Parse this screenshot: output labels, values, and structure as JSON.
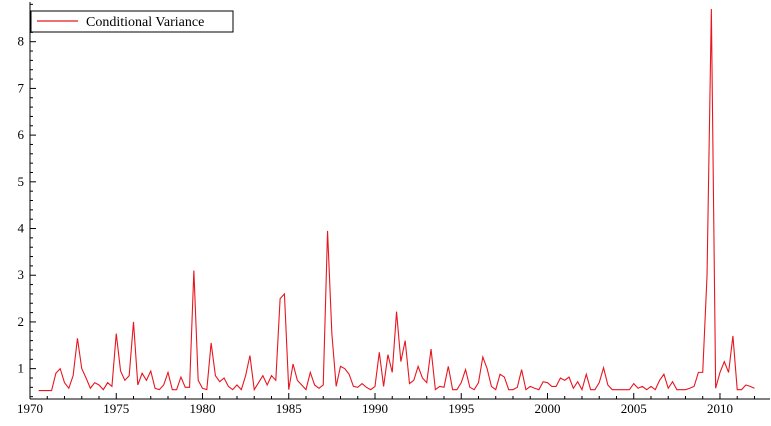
{
  "chart_data": {
    "type": "line",
    "title": "",
    "xlabel": "",
    "ylabel": "",
    "xlim": [
      1970,
      2012.9
    ],
    "ylim": [
      0.35,
      8.85
    ],
    "x_ticks": [
      1970,
      1975,
      1980,
      1985,
      1990,
      1995,
      2000,
      2005,
      2010
    ],
    "y_ticks": [
      1,
      2,
      3,
      4,
      5,
      6,
      7,
      8
    ],
    "grid": false,
    "legend_position": "top-left",
    "series": [
      {
        "name": "Conditional Variance",
        "color": "#e8161f",
        "points": [
          [
            1970.5,
            0.53
          ],
          [
            1970.75,
            0.53
          ],
          [
            1971.0,
            0.53
          ],
          [
            1971.25,
            0.53
          ],
          [
            1971.5,
            0.9
          ],
          [
            1971.75,
            1.0
          ],
          [
            1972.0,
            0.7
          ],
          [
            1972.25,
            0.58
          ],
          [
            1972.5,
            0.85
          ],
          [
            1972.75,
            1.65
          ],
          [
            1973.0,
            1.0
          ],
          [
            1973.25,
            0.8
          ],
          [
            1973.5,
            0.58
          ],
          [
            1973.75,
            0.7
          ],
          [
            1974.0,
            0.65
          ],
          [
            1974.25,
            0.55
          ],
          [
            1974.5,
            0.7
          ],
          [
            1974.75,
            0.62
          ],
          [
            1975.0,
            1.75
          ],
          [
            1975.25,
            0.95
          ],
          [
            1975.5,
            0.75
          ],
          [
            1975.75,
            0.85
          ],
          [
            1976.0,
            2.0
          ],
          [
            1976.25,
            0.65
          ],
          [
            1976.5,
            0.9
          ],
          [
            1976.75,
            0.75
          ],
          [
            1977.0,
            0.95
          ],
          [
            1977.25,
            0.58
          ],
          [
            1977.5,
            0.55
          ],
          [
            1977.75,
            0.65
          ],
          [
            1978.0,
            0.92
          ],
          [
            1978.25,
            0.55
          ],
          [
            1978.5,
            0.55
          ],
          [
            1978.75,
            0.82
          ],
          [
            1979.0,
            0.6
          ],
          [
            1979.25,
            0.6
          ],
          [
            1979.5,
            3.1
          ],
          [
            1979.75,
            0.75
          ],
          [
            1980.0,
            0.58
          ],
          [
            1980.25,
            0.55
          ],
          [
            1980.5,
            1.55
          ],
          [
            1980.75,
            0.85
          ],
          [
            1981.0,
            0.72
          ],
          [
            1981.25,
            0.8
          ],
          [
            1981.5,
            0.62
          ],
          [
            1981.75,
            0.55
          ],
          [
            1982.0,
            0.65
          ],
          [
            1982.25,
            0.55
          ],
          [
            1982.5,
            0.85
          ],
          [
            1982.75,
            1.28
          ],
          [
            1983.0,
            0.55
          ],
          [
            1983.25,
            0.7
          ],
          [
            1983.5,
            0.85
          ],
          [
            1983.75,
            0.65
          ],
          [
            1984.0,
            0.85
          ],
          [
            1984.25,
            0.75
          ],
          [
            1984.5,
            2.5
          ],
          [
            1984.75,
            2.6
          ],
          [
            1985.0,
            0.55
          ],
          [
            1985.25,
            1.1
          ],
          [
            1985.5,
            0.75
          ],
          [
            1985.75,
            0.65
          ],
          [
            1986.0,
            0.55
          ],
          [
            1986.25,
            0.92
          ],
          [
            1986.5,
            0.65
          ],
          [
            1986.75,
            0.58
          ],
          [
            1987.0,
            0.65
          ],
          [
            1987.25,
            3.95
          ],
          [
            1987.5,
            1.75
          ],
          [
            1987.75,
            0.62
          ],
          [
            1988.0,
            1.05
          ],
          [
            1988.25,
            1.0
          ],
          [
            1988.5,
            0.88
          ],
          [
            1988.75,
            0.62
          ],
          [
            1989.0,
            0.6
          ],
          [
            1989.25,
            0.68
          ],
          [
            1989.5,
            0.6
          ],
          [
            1989.75,
            0.55
          ],
          [
            1990.0,
            0.62
          ],
          [
            1990.25,
            1.35
          ],
          [
            1990.5,
            0.62
          ],
          [
            1990.75,
            1.3
          ],
          [
            1991.0,
            0.92
          ],
          [
            1991.25,
            2.22
          ],
          [
            1991.5,
            1.15
          ],
          [
            1991.75,
            1.6
          ],
          [
            1992.0,
            0.68
          ],
          [
            1992.25,
            0.75
          ],
          [
            1992.5,
            1.05
          ],
          [
            1992.75,
            0.8
          ],
          [
            1993.0,
            0.7
          ],
          [
            1993.25,
            1.42
          ],
          [
            1993.5,
            0.55
          ],
          [
            1993.75,
            0.62
          ],
          [
            1994.0,
            0.6
          ],
          [
            1994.25,
            1.05
          ],
          [
            1994.5,
            0.55
          ],
          [
            1994.75,
            0.55
          ],
          [
            1995.0,
            0.7
          ],
          [
            1995.25,
            0.98
          ],
          [
            1995.5,
            0.6
          ],
          [
            1995.75,
            0.55
          ],
          [
            1996.0,
            0.7
          ],
          [
            1996.25,
            1.25
          ],
          [
            1996.5,
            1.0
          ],
          [
            1996.75,
            0.62
          ],
          [
            1997.0,
            0.55
          ],
          [
            1997.25,
            0.88
          ],
          [
            1997.5,
            0.82
          ],
          [
            1997.75,
            0.55
          ],
          [
            1998.0,
            0.55
          ],
          [
            1998.25,
            0.6
          ],
          [
            1998.5,
            0.98
          ],
          [
            1998.75,
            0.55
          ],
          [
            1999.0,
            0.62
          ],
          [
            1999.25,
            0.58
          ],
          [
            1999.5,
            0.55
          ],
          [
            1999.75,
            0.72
          ],
          [
            2000.0,
            0.7
          ],
          [
            2000.25,
            0.62
          ],
          [
            2000.5,
            0.62
          ],
          [
            2000.75,
            0.8
          ],
          [
            2001.0,
            0.75
          ],
          [
            2001.25,
            0.82
          ],
          [
            2001.5,
            0.58
          ],
          [
            2001.75,
            0.72
          ],
          [
            2002.0,
            0.55
          ],
          [
            2002.25,
            0.88
          ],
          [
            2002.5,
            0.55
          ],
          [
            2002.75,
            0.55
          ],
          [
            2003.0,
            0.7
          ],
          [
            2003.25,
            1.02
          ],
          [
            2003.5,
            0.65
          ],
          [
            2003.75,
            0.55
          ],
          [
            2004.0,
            0.55
          ],
          [
            2004.25,
            0.55
          ],
          [
            2004.5,
            0.55
          ],
          [
            2004.75,
            0.55
          ],
          [
            2005.0,
            0.68
          ],
          [
            2005.25,
            0.58
          ],
          [
            2005.5,
            0.62
          ],
          [
            2005.75,
            0.55
          ],
          [
            2006.0,
            0.62
          ],
          [
            2006.25,
            0.55
          ],
          [
            2006.5,
            0.75
          ],
          [
            2006.75,
            0.88
          ],
          [
            2007.0,
            0.58
          ],
          [
            2007.25,
            0.72
          ],
          [
            2007.5,
            0.55
          ],
          [
            2007.75,
            0.55
          ],
          [
            2008.0,
            0.55
          ],
          [
            2008.25,
            0.58
          ],
          [
            2008.5,
            0.62
          ],
          [
            2008.75,
            0.92
          ],
          [
            2009.0,
            0.92
          ],
          [
            2009.25,
            3.0
          ],
          [
            2009.5,
            8.7
          ],
          [
            2009.75,
            0.58
          ],
          [
            2010.0,
            0.92
          ],
          [
            2010.25,
            1.15
          ],
          [
            2010.5,
            0.92
          ],
          [
            2010.75,
            1.7
          ],
          [
            2011.0,
            0.55
          ],
          [
            2011.25,
            0.55
          ],
          [
            2011.5,
            0.65
          ],
          [
            2011.75,
            0.62
          ],
          [
            2012.0,
            0.58
          ]
        ]
      }
    ]
  }
}
